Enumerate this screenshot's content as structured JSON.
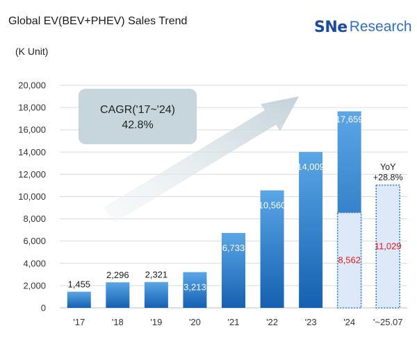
{
  "header": {
    "title": "Global EV(BEV+PHEV) Sales Trend",
    "unit": "(K Unit)",
    "logo_prefix": "SNe",
    "logo_suffix": "Research"
  },
  "annotations": {
    "cagr_line1": "CAGR('17~'24)",
    "cagr_line2": "42.8%",
    "yoy_line1": "YoY",
    "yoy_line2": "+28.8%"
  },
  "colors": {
    "bar_top": "#5aa6e6",
    "bar_bottom": "#1560b0",
    "partial_fill": "#dde8f8",
    "partial_border": "#2f7fd0",
    "partial_label": "#e8161b",
    "grid": "#d9d9d9",
    "callout": "#c7d5dc"
  },
  "chart_data": {
    "type": "bar",
    "categories": [
      "'17",
      "'18",
      "'19",
      "'20",
      "'21",
      "'22",
      "'23",
      "'24",
      "'~25.07"
    ],
    "series": [
      {
        "values": [
          1455,
          2296,
          2321,
          3213,
          6733,
          10560,
          14009,
          17659,
          null
        ]
      },
      {
        "values": [
          null,
          null,
          null,
          null,
          null,
          null,
          null,
          8562,
          11029
        ]
      }
    ],
    "value_labels": [
      "1,455",
      "2,296",
      "2,321",
      "3,213",
      "6,733",
      "10,560",
      "14,009",
      "17,659",
      null
    ],
    "partial_labels": [
      null,
      null,
      null,
      null,
      null,
      null,
      null,
      "8,562",
      "11,029"
    ],
    "y_ticks": [
      "0",
      "2,000",
      "4,000",
      "6,000",
      "8,000",
      "10,000",
      "12,000",
      "14,000",
      "16,000",
      "18,000",
      "20,000"
    ],
    "ylim": [
      0,
      20000
    ],
    "grid": true,
    "legend": "none"
  }
}
